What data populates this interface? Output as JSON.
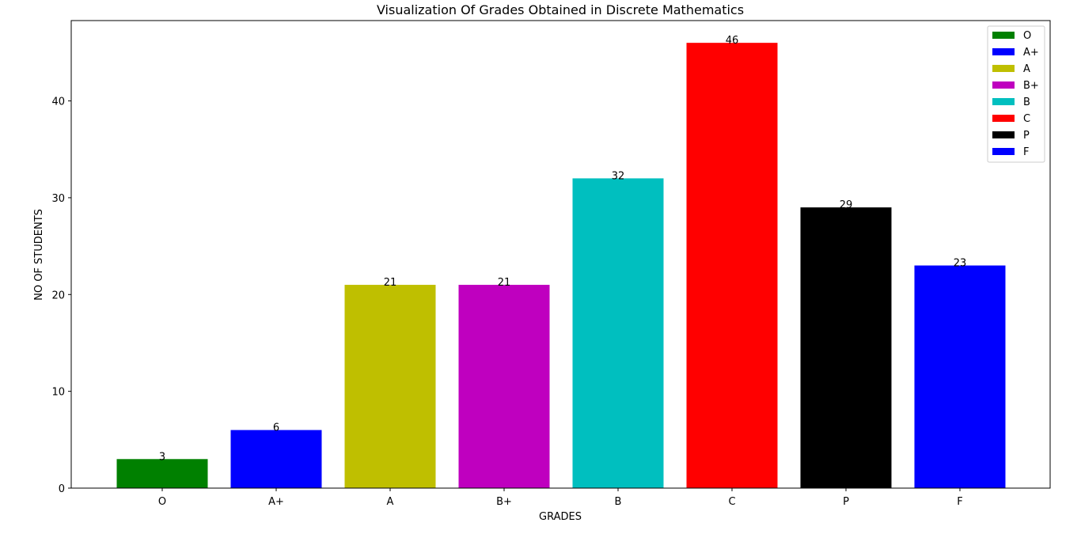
{
  "chart_data": {
    "type": "bar",
    "title": "Visualization Of Grades Obtained in Discrete Mathematics",
    "xlabel": "GRADES",
    "ylabel": "NO OF STUDENTS",
    "categories": [
      "O",
      "A+",
      "A",
      "B+",
      "B",
      "C",
      "P",
      "F"
    ],
    "values": [
      3,
      6,
      21,
      21,
      32,
      46,
      29,
      23
    ],
    "colors": [
      "#008000",
      "#0000ff",
      "#bfbf00",
      "#bf00bf",
      "#00bfbf",
      "#ff0000",
      "#000000",
      "#0000ff"
    ],
    "yticks": [
      0,
      10,
      20,
      30,
      40
    ],
    "ylim": [
      0,
      48.3
    ],
    "grid": false,
    "legend_position": "top-right",
    "legend": [
      "O",
      "A+",
      "A",
      "B+",
      "B",
      "C",
      "P",
      "F"
    ]
  }
}
